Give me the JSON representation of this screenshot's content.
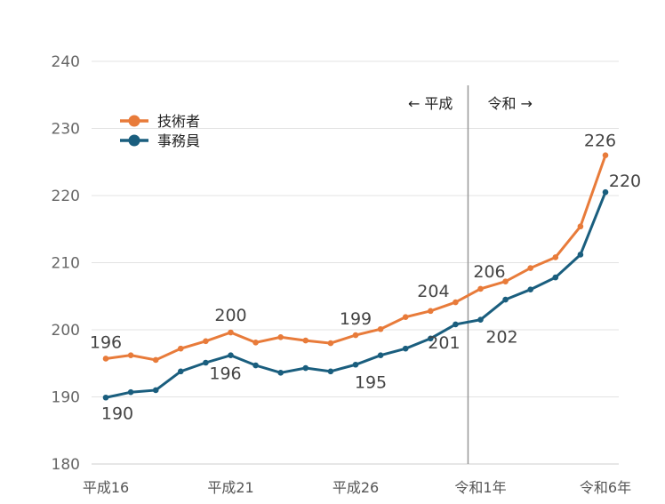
{
  "chart_data": {
    "type": "line",
    "x": [
      "平成16",
      "平成17",
      "平成18",
      "平成19",
      "平成20",
      "平成21",
      "平成22",
      "平成23",
      "平成24",
      "平成25",
      "平成26",
      "平成27",
      "平成28",
      "平成29",
      "平成30",
      "令和1年",
      "令和2年",
      "令和3年",
      "令和4年",
      "令和5年",
      "令和6年"
    ],
    "xtick_labels": [
      "平成16",
      "平成21",
      "平成26",
      "令和1年",
      "令和6年"
    ],
    "xtick_indices": [
      0,
      5,
      10,
      15,
      20
    ],
    "ylim": [
      180,
      240
    ],
    "yticks": [
      180,
      190,
      200,
      210,
      220,
      230,
      240
    ],
    "grid": true,
    "legend": "top-left",
    "series": [
      {
        "name": "技術者",
        "color": "#E87B3A",
        "values": [
          195.7,
          196.2,
          195.5,
          197.2,
          198.3,
          199.6,
          198.1,
          198.9,
          198.4,
          198.0,
          199.2,
          200.1,
          201.9,
          202.8,
          204.1,
          206.1,
          207.2,
          209.2,
          210.8,
          215.4,
          226.0
        ],
        "labels": [
          {
            "index": 0,
            "text": "196"
          },
          {
            "index": 5,
            "text": "200"
          },
          {
            "index": 10,
            "text": "199"
          },
          {
            "index": 14,
            "text": "204"
          },
          {
            "index": 15,
            "text": "206"
          },
          {
            "index": 20,
            "text": "226"
          }
        ]
      },
      {
        "name": "事務員",
        "color": "#1A5E7E",
        "values": [
          189.9,
          190.7,
          191.0,
          193.8,
          195.1,
          196.2,
          194.7,
          193.6,
          194.3,
          193.8,
          194.8,
          196.2,
          197.2,
          198.7,
          200.8,
          201.5,
          204.5,
          206.0,
          207.8,
          211.2,
          220.5
        ],
        "labels": [
          {
            "index": 0,
            "text": "190"
          },
          {
            "index": 5,
            "text": "196"
          },
          {
            "index": 10,
            "text": "195"
          },
          {
            "index": 14,
            "text": "201"
          },
          {
            "index": 15,
            "text": "202"
          },
          {
            "index": 20,
            "text": "220"
          }
        ]
      }
    ],
    "annotations": {
      "divider_between_indices": [
        14,
        15
      ],
      "left_text": "← 平成",
      "right_text": "令和 →"
    }
  }
}
